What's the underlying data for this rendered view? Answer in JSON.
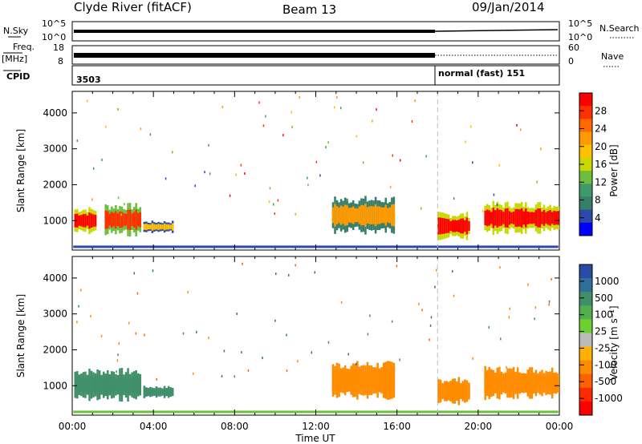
{
  "header": {
    "radar": "Clyde River (fitACF)",
    "beam": "Beam 13",
    "date": "09/Jan/2014"
  },
  "status": {
    "nsky_label": "N.Sky",
    "nsky_ticks": [
      "10^5",
      "10^0"
    ],
    "nsearch_label": "N.Search",
    "nsearch_ticks": [
      "10^5",
      "10^0"
    ],
    "freq_label_1": "Freq.",
    "freq_label_2": "[MHz]",
    "freq_ticks": [
      "18",
      "8"
    ],
    "nave_label": "Nave",
    "nave_ticks": [
      "60",
      "0"
    ],
    "cpid_label": "CPID",
    "cpid_segments": [
      {
        "text": "3503",
        "start_hour": 0
      },
      {
        "text": "normal (fast) 151",
        "start_hour": 18
      }
    ]
  },
  "power_colorbar": {
    "label": "Power [dB]",
    "ticks": [
      "28",
      "24",
      "20",
      "16",
      "12",
      "8",
      "4"
    ],
    "colors": [
      "#ff0000",
      "#ff3000",
      "#ff6a00",
      "#ff9a00",
      "#ffc000",
      "#c8d800",
      "#6cbf3c",
      "#3f9a6a",
      "#357f6a",
      "#2e4aa8",
      "#0000ff"
    ]
  },
  "velocity_colorbar": {
    "label": "Velocity [m s⁻¹]",
    "ticks": [
      "1000",
      "500",
      "100",
      "25",
      "-25",
      "-100",
      "-500",
      "-1000"
    ],
    "colors": [
      "#2a4aa8",
      "#2f6f9a",
      "#3f8f6a",
      "#50b050",
      "#6cd030",
      "#bbbbbb",
      "#ffb000",
      "#ff8c00",
      "#ff6000",
      "#ff2a00",
      "#ff0000"
    ]
  },
  "chart_data": [
    {
      "type": "heatmap",
      "panel": "power",
      "ylabel": "Slant Range [km]",
      "xlim": [
        "00:00",
        "24:00"
      ],
      "ylim": [
        180,
        4600
      ],
      "yticks": [
        "1000",
        "2000",
        "3000",
        "4000"
      ],
      "xticks": [
        "00:00",
        "04:00",
        "08:00",
        "12:00",
        "16:00",
        "20:00",
        "00:00"
      ],
      "regions": [
        {
          "t0": 0.1,
          "t1": 1.2,
          "r0": 600,
          "r1": 1400,
          "level": 28
        },
        {
          "t0": 1.6,
          "t1": 3.4,
          "r0": 550,
          "r1": 1500,
          "level": 24
        },
        {
          "t0": 3.5,
          "t1": 5.0,
          "r0": 650,
          "r1": 1000,
          "level": 16
        },
        {
          "t0": 12.8,
          "t1": 15.9,
          "r0": 600,
          "r1": 1700,
          "level": 20
        },
        {
          "t0": 18.0,
          "t1": 19.6,
          "r0": 450,
          "r1": 1250,
          "level": 28
        },
        {
          "t0": 20.3,
          "t1": 24.0,
          "r0": 600,
          "r1": 1550,
          "level": 28
        }
      ]
    },
    {
      "type": "heatmap",
      "panel": "velocity",
      "ylabel": "Slant Range [km]",
      "xlabel": "Time UT",
      "xlim": [
        "00:00",
        "24:00"
      ],
      "ylim": [
        180,
        4600
      ],
      "yticks": [
        "1000",
        "2000",
        "3000",
        "4000"
      ],
      "xticks": [
        "00:00",
        "04:00",
        "08:00",
        "12:00",
        "16:00",
        "20:00",
        "00:00"
      ],
      "regions": [
        {
          "t0": 0.1,
          "t1": 3.4,
          "r0": 550,
          "r1": 1500,
          "level": 100
        },
        {
          "t0": 3.5,
          "t1": 5.0,
          "r0": 650,
          "r1": 1000,
          "level": 100
        },
        {
          "t0": 12.8,
          "t1": 15.9,
          "r0": 600,
          "r1": 1700,
          "level": -100
        },
        {
          "t0": 18.0,
          "t1": 19.6,
          "r0": 450,
          "r1": 1250,
          "level": -100
        },
        {
          "t0": 20.3,
          "t1": 24.0,
          "r0": 600,
          "r1": 1550,
          "level": -100
        }
      ]
    }
  ]
}
